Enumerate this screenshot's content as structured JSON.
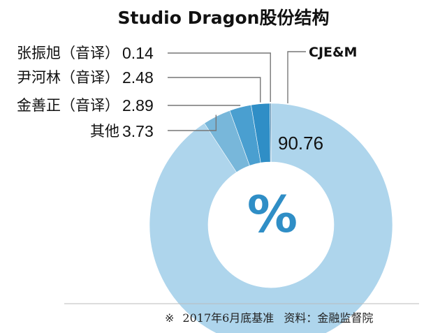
{
  "chart_data": {
    "type": "pie",
    "title": "Studio Dragon股份结构",
    "unit_symbol": "%",
    "slices": [
      {
        "label": "CJE&M",
        "value": 90.76,
        "color": "#aed5ec"
      },
      {
        "label": "其他",
        "value": 3.73,
        "color": "#78b7da"
      },
      {
        "label": "金善正（音译）",
        "value": 2.89,
        "color": "#4a9fd0"
      },
      {
        "label": "尹河林（音译）",
        "value": 2.48,
        "color": "#2f8ec6"
      },
      {
        "label": "张振旭（音译）",
        "value": 0.14,
        "color": "#1d5f8f"
      }
    ],
    "value_labels": [
      "0.14",
      "2.48",
      "2.89",
      "3.73",
      "90.76"
    ],
    "legend_placement": "left"
  },
  "footnote": {
    "mark": "※",
    "date_note": "2017年6月底基准",
    "source": "资料：金融监督院"
  },
  "colors": {
    "leader_line": "#777777",
    "baseline": "#bbbbbb"
  }
}
